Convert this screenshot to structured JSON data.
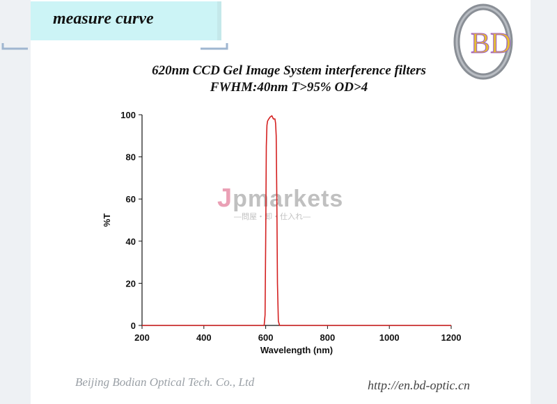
{
  "header": {
    "title": "measure curve"
  },
  "logo": {
    "text": "BD"
  },
  "chart_data": {
    "type": "line",
    "title": "620nm CCD Gel Image System interference filters",
    "subtitle": "FWHM:40nm T>95%  OD>4",
    "xlabel": "Wavelength (nm)",
    "ylabel": "%T",
    "xlim": [
      200,
      1200
    ],
    "ylim": [
      0,
      100
    ],
    "xticks": [
      200,
      400,
      600,
      800,
      1000,
      1200
    ],
    "yticks": [
      0,
      20,
      40,
      60,
      80,
      100
    ],
    "grid": false,
    "series": [
      {
        "color": "#d42020",
        "x": [
          200,
          595,
          598,
          600,
          602,
          604,
          606,
          610,
          615,
          620,
          625,
          630,
          632,
          634,
          636,
          638,
          641,
          645,
          1200
        ],
        "y": [
          0,
          0,
          5,
          40,
          85,
          95,
          97,
          98,
          99,
          99.5,
          98,
          98,
          96,
          90,
          60,
          20,
          2,
          0,
          0
        ]
      }
    ]
  },
  "watermark": {
    "main": "Jpmarkets",
    "sub": "—問屋・卸・仕入れ—"
  },
  "footer": {
    "company": "Beijing Bodian Optical Tech. Co., Ltd",
    "url": "http://en.bd-optic.cn"
  }
}
